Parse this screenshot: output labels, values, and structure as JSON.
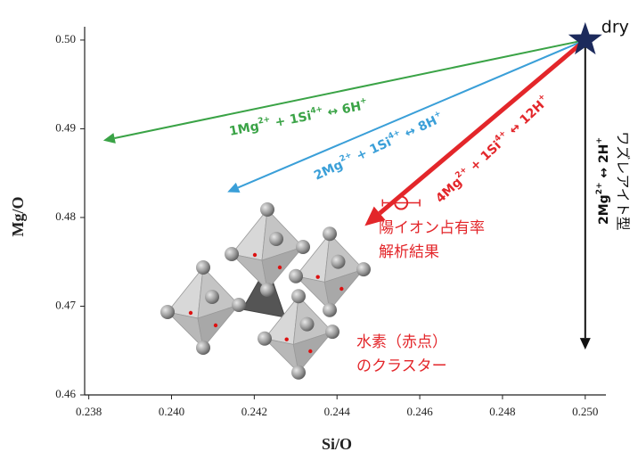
{
  "chart_data": {
    "type": "scatter",
    "x_label": "Si/O",
    "y_label": "Mg/O",
    "xlim": [
      0.2379,
      0.2505
    ],
    "ylim": [
      0.46,
      0.5015
    ],
    "xticks": [
      0.238,
      {
        "value": 0.24,
        "label": "0.240"
      },
      0.242,
      0.244,
      0.246,
      0.248,
      {
        "value": 0.25,
        "label": "0.250"
      }
    ],
    "yticks": [
      0.46,
      0.47,
      0.48,
      0.49,
      {
        "value": 0.5,
        "label": "0.50"
      }
    ],
    "points": [
      {
        "x": 0.25,
        "y": 0.5,
        "label": "dry",
        "color": "#1c2a5c",
        "marker": "star"
      },
      {
        "x": 0.24555,
        "y": 0.48165,
        "xerr": 0.00045,
        "color": "#e3262a",
        "marker": "circle"
      }
    ],
    "arrows": [
      {
        "color": "#3aa346",
        "x": [
          0.25,
          0.23835
        ],
        "y": [
          0.5,
          0.48867
        ],
        "label_parts": [
          "1Mg",
          "2+",
          " + 1Si",
          "4+",
          " ↔ 6H",
          "+"
        ]
      },
      {
        "color": "#3a9fd8",
        "x": [
          0.25,
          0.24135
        ],
        "y": [
          0.5,
          0.48286
        ],
        "label_parts": [
          "2Mg",
          "2+",
          " + 1Si",
          "4+",
          " ↔ 8H",
          "+"
        ]
      },
      {
        "color": "#e3262a",
        "x": [
          0.25,
          0.24467
        ],
        "y": [
          0.5,
          0.47905
        ],
        "label_parts": [
          "4Mg",
          "2+",
          " + 1Si",
          "4+",
          " ↔ 12H",
          "+"
        ]
      },
      {
        "color": "#111111",
        "x": [
          0.25,
          0.25
        ],
        "y": [
          0.5,
          0.46511
        ],
        "label_parts": [
          "2Mg",
          "2+",
          " ↔ 2H",
          "+"
        ],
        "label_line2": "ワズレアイト型"
      }
    ],
    "annotations": [
      {
        "lines": [
          "陽イオン占有率",
          "解析結果"
        ],
        "color": "#e3262a"
      },
      {
        "lines": [
          "水素（赤点）",
          "のクラスター"
        ],
        "color": "#e3262a"
      }
    ]
  }
}
